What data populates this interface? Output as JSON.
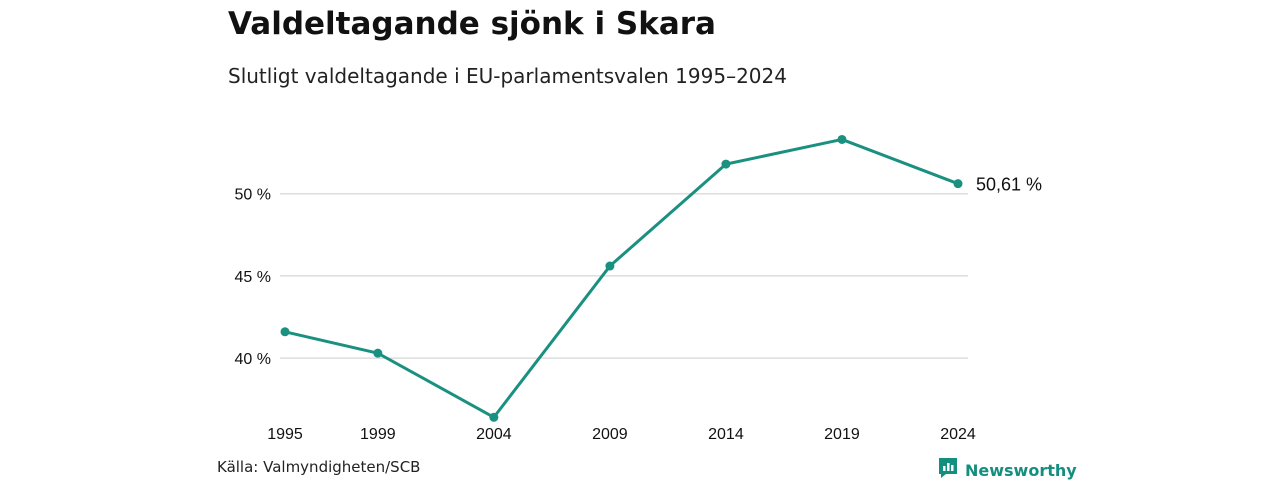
{
  "title": "Valdeltagande sjönk i Skara",
  "subtitle": "Slutligt valdeltagande i EU-parlamentsvalen 1995–2024",
  "source": "Källa: Valmyndigheten/SCB",
  "brand": {
    "name": "Newsworthy",
    "icon": "newsworthy-logo-icon",
    "color": "#138f7f"
  },
  "chart_data": {
    "type": "line",
    "title": "Valdeltagande sjönk i Skara",
    "subtitle": "Slutligt valdeltagande i EU-parlamentsvalen 1995–2024",
    "categories": [
      "1995",
      "1999",
      "2004",
      "2009",
      "2014",
      "2019",
      "2024"
    ],
    "x": [
      1995,
      1999,
      2004,
      2009,
      2014,
      2019,
      2024
    ],
    "series": [
      {
        "values": [
          41.6,
          40.3,
          36.4,
          45.6,
          51.8,
          53.3,
          50.61
        ],
        "color": "#1a9080"
      }
    ],
    "yticks": [
      40,
      45,
      50
    ],
    "ytick_labels": [
      "40 %",
      "45 %",
      "50 %"
    ],
    "ylim": [
      34.5,
      55
    ],
    "end_label": "50,61 %",
    "grid": "horizontal"
  }
}
